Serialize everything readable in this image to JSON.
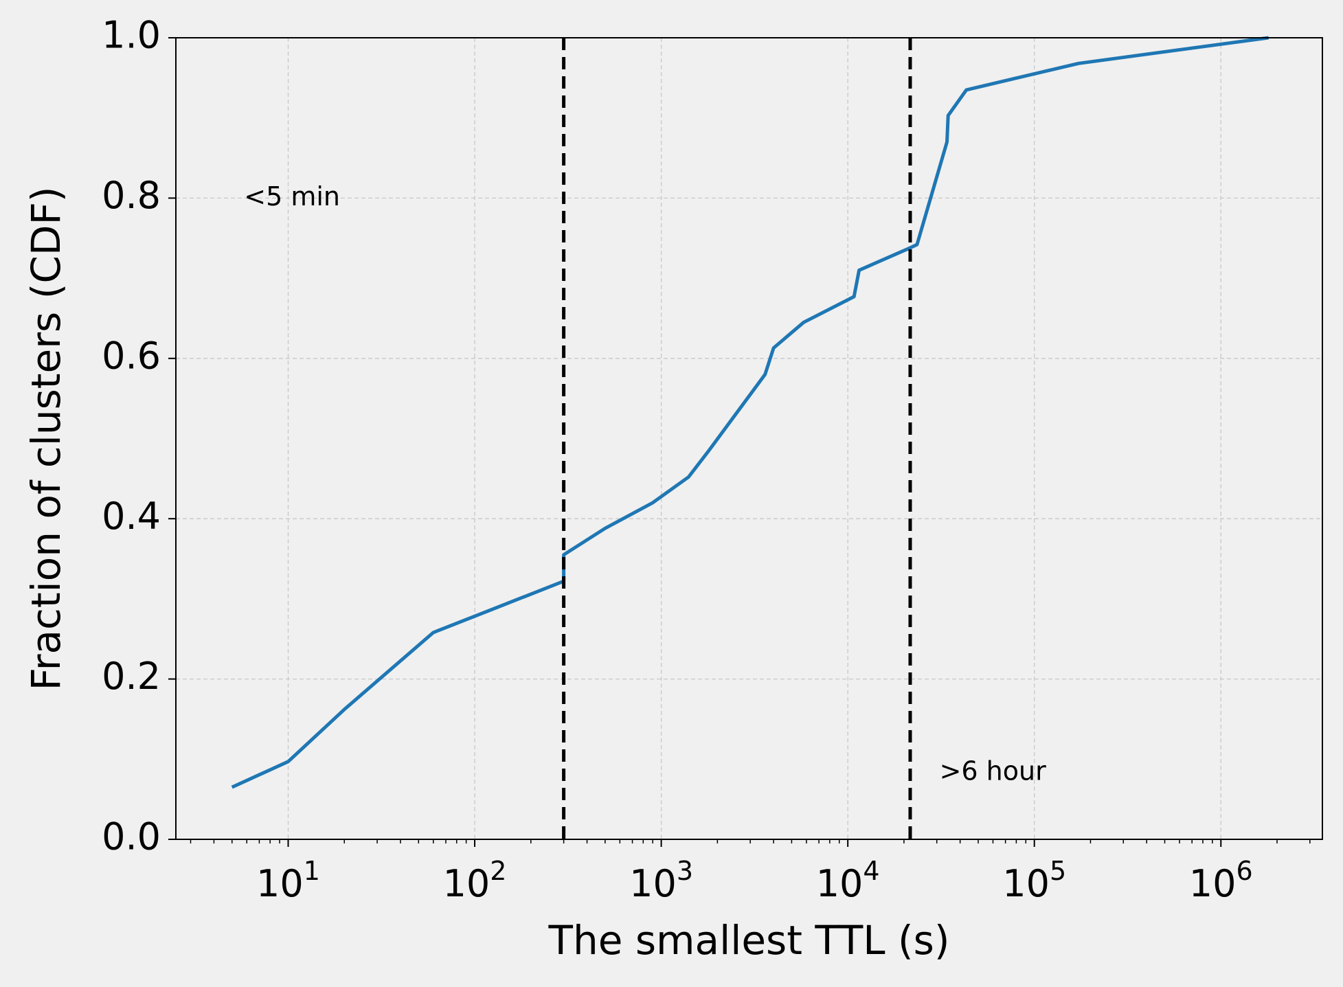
{
  "chart_data": {
    "type": "line",
    "title": "",
    "xlabel": "The smallest TTL (s)",
    "ylabel": "Fraction of clusters (CDF)",
    "xscale": "log",
    "xlim": [
      2.5,
      3500000
    ],
    "ylim": [
      0.0,
      1.0
    ],
    "grid": true,
    "x_ticks": [
      {
        "value": 10,
        "base": "10",
        "exp": "1"
      },
      {
        "value": 100,
        "base": "10",
        "exp": "2"
      },
      {
        "value": 1000,
        "base": "10",
        "exp": "3"
      },
      {
        "value": 10000,
        "base": "10",
        "exp": "4"
      },
      {
        "value": 100000,
        "base": "10",
        "exp": "5"
      },
      {
        "value": 1000000,
        "base": "10",
        "exp": "6"
      }
    ],
    "y_ticks": [
      {
        "value": 0.0,
        "label": "0.0"
      },
      {
        "value": 0.2,
        "label": "0.2"
      },
      {
        "value": 0.4,
        "label": "0.4"
      },
      {
        "value": 0.6,
        "label": "0.6"
      },
      {
        "value": 0.8,
        "label": "0.8"
      },
      {
        "value": 1.0,
        "label": "1.0"
      }
    ],
    "series": [
      {
        "color": "#1f77b4",
        "x": [
          5,
          10,
          20,
          60,
          300,
          300,
          500,
          900,
          1400,
          1800,
          3600,
          4000,
          5800,
          10800,
          11500,
          21600,
          23500,
          34000,
          34500,
          43200,
          172800,
          1800000
        ],
        "y": [
          0.065,
          0.097,
          0.162,
          0.258,
          0.322,
          0.355,
          0.388,
          0.42,
          0.452,
          0.485,
          0.58,
          0.613,
          0.645,
          0.677,
          0.71,
          0.738,
          0.742,
          0.87,
          0.903,
          0.935,
          0.968,
          1.0
        ]
      }
    ],
    "vlines": [
      {
        "x": 300,
        "color": "#000000",
        "style": "dashed"
      },
      {
        "x": 21600,
        "color": "#000000",
        "style": "dashed"
      }
    ],
    "annotations": [
      {
        "text": "<5 min",
        "x": 5.8,
        "y": 0.8
      },
      {
        "text": ">6 hour",
        "x": 31000,
        "y": 0.083
      }
    ]
  }
}
